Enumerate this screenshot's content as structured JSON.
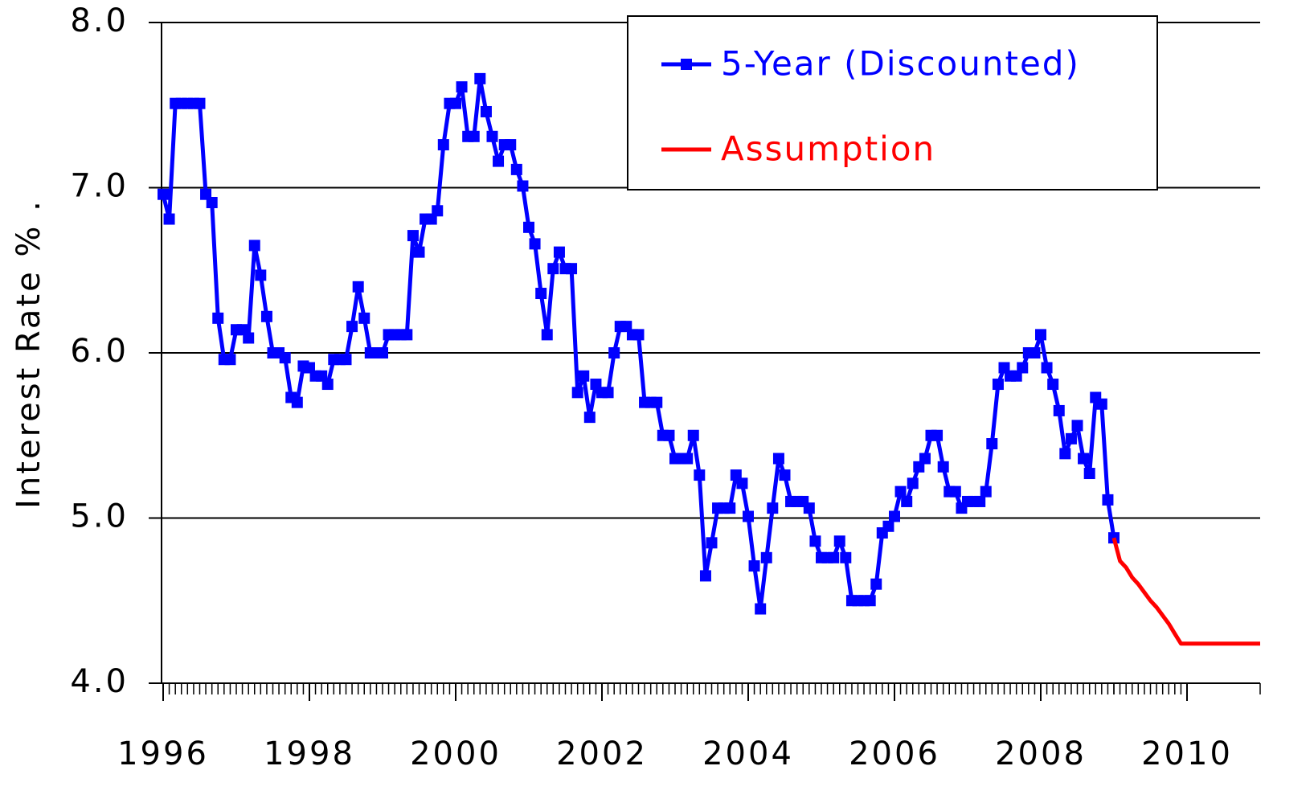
{
  "chart_data": {
    "type": "line",
    "y_label": "Interest Rate % .",
    "xlim": [
      1996,
      2011
    ],
    "xticks": [
      1996,
      1998,
      2000,
      2002,
      2004,
      2006,
      2008,
      2010
    ],
    "ylim": [
      4,
      8
    ],
    "yticks": [
      {
        "value": 4,
        "label": "4.0"
      },
      {
        "value": 5,
        "label": "5.0"
      },
      {
        "value": 6,
        "label": "6.0"
      },
      {
        "value": 7,
        "label": "7.0"
      },
      {
        "value": 8,
        "label": "8.0"
      }
    ],
    "grid": true,
    "legend": "upper center",
    "series": [
      {
        "name": "5-Year (Discounted)",
        "color": "#0000ff",
        "marker": "square",
        "x": [
          1996,
          1996.083,
          1996.167,
          1996.25,
          1996.333,
          1996.417,
          1996.5,
          1996.583,
          1996.667,
          1996.75,
          1996.833,
          1996.917,
          1997,
          1997.083,
          1997.167,
          1997.25,
          1997.333,
          1997.417,
          1997.5,
          1997.583,
          1997.667,
          1997.75,
          1997.833,
          1997.917,
          1998,
          1998.083,
          1998.167,
          1998.25,
          1998.333,
          1998.417,
          1998.5,
          1998.583,
          1998.667,
          1998.75,
          1998.833,
          1998.917,
          1999,
          1999.083,
          1999.167,
          1999.25,
          1999.333,
          1999.417,
          1999.5,
          1999.583,
          1999.667,
          1999.75,
          1999.833,
          1999.917,
          2000,
          2000.083,
          2000.167,
          2000.25,
          2000.333,
          2000.417,
          2000.5,
          2000.583,
          2000.667,
          2000.75,
          2000.833,
          2000.917,
          2001,
          2001.083,
          2001.167,
          2001.25,
          2001.333,
          2001.417,
          2001.5,
          2001.583,
          2001.667,
          2001.75,
          2001.833,
          2001.917,
          2002,
          2002.083,
          2002.167,
          2002.25,
          2002.333,
          2002.417,
          2002.5,
          2002.583,
          2002.667,
          2002.75,
          2002.833,
          2002.917,
          2003,
          2003.083,
          2003.167,
          2003.25,
          2003.333,
          2003.417,
          2003.5,
          2003.583,
          2003.667,
          2003.75,
          2003.833,
          2003.917,
          2004,
          2004.083,
          2004.167,
          2004.25,
          2004.333,
          2004.417,
          2004.5,
          2004.583,
          2004.667,
          2004.75,
          2004.833,
          2004.917,
          2005,
          2005.083,
          2005.167,
          2005.25,
          2005.333,
          2005.417,
          2005.5,
          2005.583,
          2005.667,
          2005.75,
          2005.833,
          2005.917,
          2006,
          2006.083,
          2006.167,
          2006.25,
          2006.333,
          2006.417,
          2006.5,
          2006.583,
          2006.667,
          2006.75,
          2006.833,
          2006.917,
          2007,
          2007.083,
          2007.167,
          2007.25,
          2007.333,
          2007.417,
          2007.5,
          2007.583,
          2007.667,
          2007.75,
          2007.833,
          2007.917,
          2008,
          2008.083,
          2008.167,
          2008.25,
          2008.333,
          2008.417,
          2008.5,
          2008.583,
          2008.667,
          2008.75,
          2008.833,
          2008.917,
          2009
        ],
        "values": [
          6.96,
          6.81,
          7.51,
          7.51,
          7.51,
          7.51,
          7.51,
          6.96,
          6.91,
          6.21,
          5.96,
          5.96,
          6.14,
          6.14,
          6.09,
          6.65,
          6.47,
          6.22,
          6.0,
          6.0,
          5.97,
          5.73,
          5.7,
          5.92,
          5.91,
          5.86,
          5.86,
          5.81,
          5.96,
          5.96,
          5.96,
          6.16,
          6.4,
          6.21,
          6.0,
          6.0,
          6.0,
          6.11,
          6.11,
          6.11,
          6.11,
          6.71,
          6.61,
          6.81,
          6.81,
          6.86,
          7.26,
          7.51,
          7.51,
          7.61,
          7.31,
          7.31,
          7.66,
          7.46,
          7.31,
          7.16,
          7.26,
          7.26,
          7.11,
          7.01,
          6.76,
          6.66,
          6.36,
          6.11,
          6.51,
          6.61,
          6.51,
          6.51,
          5.76,
          5.86,
          5.61,
          5.81,
          5.76,
          5.76,
          6.0,
          6.16,
          6.16,
          6.11,
          6.11,
          5.7,
          5.7,
          5.7,
          5.5,
          5.5,
          5.36,
          5.36,
          5.36,
          5.5,
          5.26,
          4.65,
          4.85,
          5.06,
          5.06,
          5.06,
          5.26,
          5.21,
          5.01,
          4.71,
          4.45,
          4.76,
          5.06,
          5.36,
          5.26,
          5.1,
          5.1,
          5.1,
          5.06,
          4.86,
          4.76,
          4.76,
          4.76,
          4.86,
          4.76,
          4.5,
          4.5,
          4.5,
          4.5,
          4.6,
          4.91,
          4.95,
          5.01,
          5.16,
          5.1,
          5.21,
          5.31,
          5.36,
          5.5,
          5.5,
          5.31,
          5.16,
          5.16,
          5.06,
          5.1,
          5.1,
          5.1,
          5.16,
          5.45,
          5.81,
          5.91,
          5.86,
          5.86,
          5.91,
          6.0,
          6.0,
          6.11,
          5.91,
          5.81,
          5.65,
          5.39,
          5.48,
          5.56,
          5.36,
          5.27,
          5.73,
          5.69,
          5.11,
          4.88
        ]
      },
      {
        "name": "Assumption",
        "color": "#ff0000",
        "marker": "none",
        "x": [
          2009,
          2009.083,
          2009.167,
          2009.25,
          2009.333,
          2009.417,
          2009.5,
          2009.583,
          2009.667,
          2009.75,
          2009.833,
          2009.917,
          2010,
          2011
        ],
        "values": [
          4.88,
          4.74,
          4.7,
          4.64,
          4.6,
          4.55,
          4.5,
          4.46,
          4.41,
          4.36,
          4.3,
          4.24,
          4.24,
          4.24
        ]
      }
    ]
  }
}
